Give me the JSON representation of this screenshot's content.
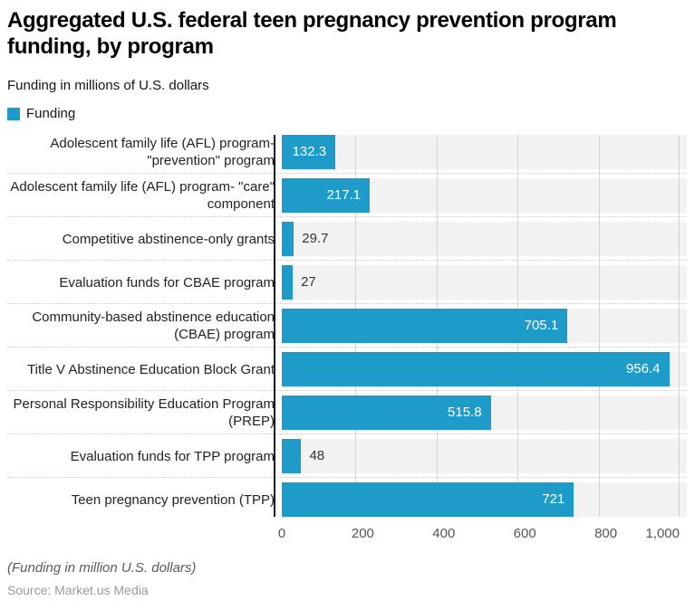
{
  "header": {
    "title": "Aggregated U.S. federal teen pregnancy prevention program\nfunding, by program",
    "subtitle": "Funding in millions of U.S. dollars"
  },
  "legend": {
    "label": "Funding",
    "color": "#1d9bc9"
  },
  "chart_data": {
    "type": "bar",
    "orientation": "horizontal",
    "title": "Aggregated U.S. federal teen pregnancy prevention program funding, by program",
    "series_name": "Funding",
    "categories": [
      "Adolescent family life (AFL) program-\n\"prevention\" program",
      "Adolescent family life (AFL) program- \"care\"\ncomponent",
      "Competitive abstinence-only grants",
      "Evaluation funds for CBAE program",
      "Community-based abstinence education\n(CBAE) program",
      "Title V Abstinence Education Block Grant",
      "Personal Responsibility Education Program\n(PREP)",
      "Evaluation funds for TPP program",
      "Teen pregnancy prevention (TPP)"
    ],
    "values": [
      132.3,
      217.1,
      29.7,
      27,
      705.1,
      956.4,
      515.8,
      48,
      721
    ],
    "value_labels": [
      "132.3",
      "217.1",
      "29.7",
      "27",
      "705.1",
      "956.4",
      "515.8",
      "48",
      "721"
    ],
    "xlabel": "",
    "ylabel": "",
    "xlim": [
      0,
      1000
    ],
    "x_ticks": {
      "values": [
        0,
        200,
        400,
        600,
        800,
        1000
      ],
      "labels": [
        "0",
        "200",
        "400",
        "600",
        "800",
        "1,000"
      ]
    },
    "grid": "vertical",
    "legend_position": "top-left",
    "bar_color": "#1d9bc9",
    "band_color": "#f2f2f2"
  },
  "footer": {
    "footnote": "(Funding in million U.S. dollars)",
    "source": "Source: Market.us Media"
  }
}
